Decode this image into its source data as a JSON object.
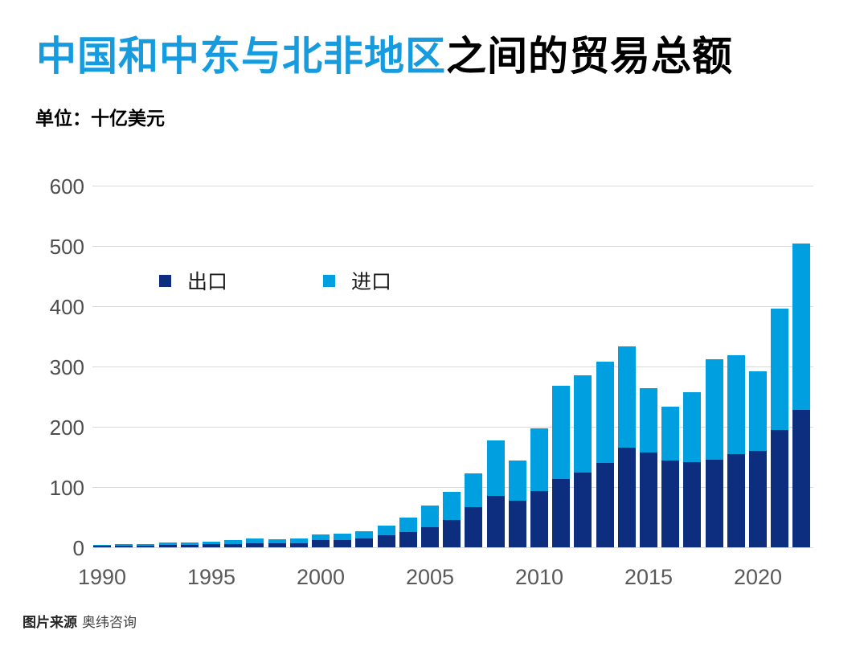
{
  "title": {
    "highlight": "中国和中东与北非地区",
    "rest": "之间的贸易总额"
  },
  "subtitle": "单位：十亿美元",
  "legend": [
    {
      "label": "出口",
      "color": "#0D2D7F"
    },
    {
      "label": "进口",
      "color": "#009FE0"
    }
  ],
  "footer": {
    "bold": "图片来源",
    "normal": "奥纬咨询"
  },
  "colors": {
    "title_highlight": "#169BDF",
    "export_bar": "#0D2D7F",
    "import_bar": "#009FE0",
    "gridline": "#d9d9d9",
    "axis_text": "#595959"
  },
  "chart_data": {
    "type": "bar",
    "stacked": true,
    "title": "中国和中东与北非地区之间的贸易总额",
    "unit_label": "单位：十亿美元",
    "xlabel": "",
    "ylabel": "",
    "ylim": [
      0,
      600
    ],
    "yticks": [
      0,
      100,
      200,
      300,
      400,
      500,
      600
    ],
    "xticks": [
      1990,
      1995,
      2000,
      2005,
      2010,
      2015,
      2020
    ],
    "grid": true,
    "legend_position": "inside-upper-left",
    "x": [
      1990,
      1991,
      1992,
      1993,
      1994,
      1995,
      1996,
      1997,
      1998,
      1999,
      2000,
      2001,
      2002,
      2003,
      2004,
      2005,
      2006,
      2007,
      2008,
      2009,
      2010,
      2011,
      2012,
      2013,
      2014,
      2015,
      2016,
      2017,
      2018,
      2019,
      2020,
      2021,
      2022
    ],
    "series": [
      {
        "name": "出口",
        "color": "#0D2D7F",
        "values": [
          2.5,
          3,
          3,
          4,
          4,
          5,
          6,
          7,
          7,
          7,
          12,
          12,
          15,
          20,
          26,
          33,
          46,
          67,
          86,
          78,
          94,
          113,
          124,
          140,
          165,
          157,
          144,
          142,
          145,
          155,
          160,
          195,
          228
        ]
      },
      {
        "name": "进口",
        "color": "#009FE0",
        "values": [
          2,
          2.5,
          3,
          4,
          4,
          5,
          6,
          8,
          6,
          7.5,
          10,
          10.5,
          11.5,
          16,
          24,
          37,
          46,
          56,
          91,
          66,
          103,
          155,
          162,
          168,
          169,
          107,
          89,
          115,
          167,
          164,
          132,
          201,
          276
        ]
      }
    ]
  }
}
